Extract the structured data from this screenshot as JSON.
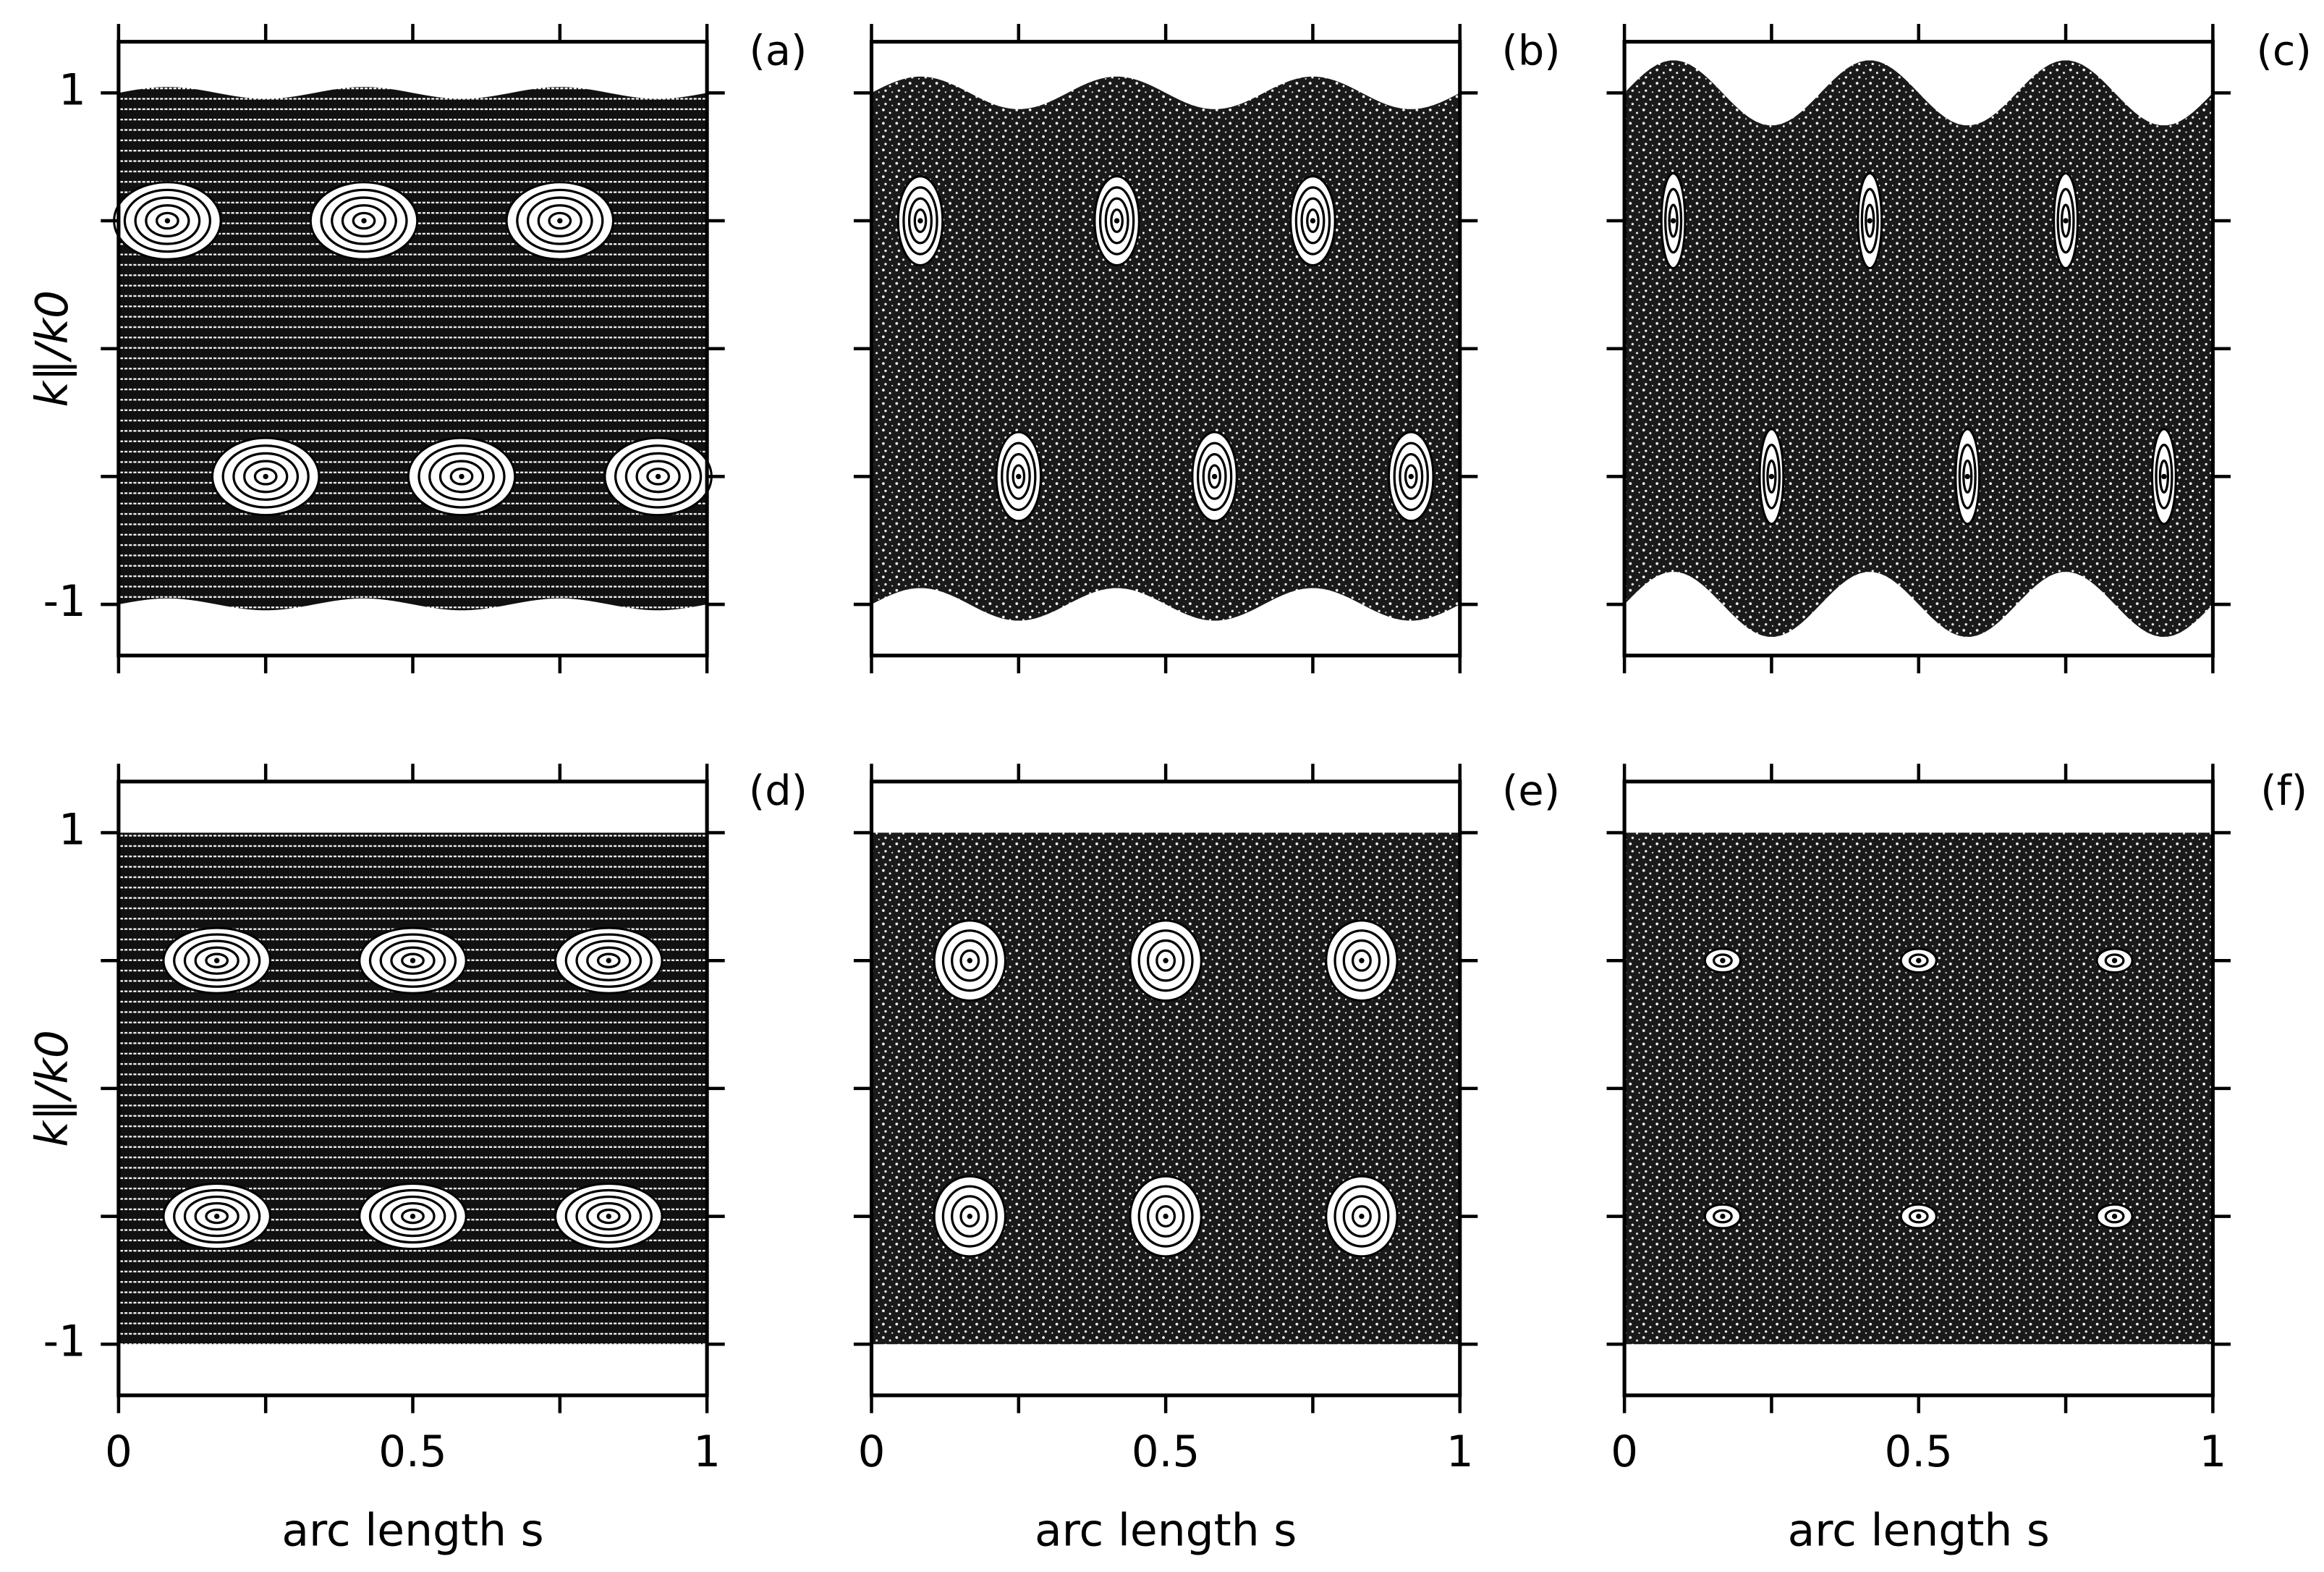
{
  "chart_data": [
    {
      "type": "scatter",
      "label": "(a)",
      "ylabel": "k∥/k0",
      "x": [
        0.083,
        0.417,
        0.75,
        0.25,
        0.583,
        0.917
      ],
      "y": [
        0.5,
        0.5,
        0.5,
        -0.5,
        -0.5,
        -0.5
      ],
      "xlim": [
        0,
        1
      ],
      "ylim": [
        -1.2,
        1.2
      ],
      "xticks": [
        0,
        0.25,
        0.5,
        0.75,
        1
      ],
      "xticklabels": false,
      "yticks": [
        -1,
        {
          "value": -0.5,
          "label": null
        },
        {
          "value": 0,
          "label": null
        },
        {
          "value": 0.5,
          "label": null
        },
        1
      ]
    },
    {
      "type": "scatter",
      "label": "(b)",
      "x": [
        0.083,
        0.417,
        0.75,
        0.25,
        0.583,
        0.917
      ],
      "y": [
        0.5,
        0.5,
        0.5,
        -0.5,
        -0.5,
        -0.5
      ],
      "xlim": [
        0,
        1
      ],
      "ylim": [
        -1.2,
        1.2
      ],
      "xticks": [
        0,
        0.25,
        0.5,
        0.75,
        1
      ],
      "xticklabels": false,
      "yticks": [
        -1,
        -0.5,
        0,
        0.5,
        1
      ],
      "yticklabels": false
    },
    {
      "type": "scatter",
      "label": "(c)",
      "x": [
        0.083,
        0.417,
        0.75,
        0.25,
        0.583,
        0.917
      ],
      "y": [
        0.5,
        0.5,
        0.5,
        -0.5,
        -0.5,
        -0.5
      ],
      "xlim": [
        0,
        1
      ],
      "ylim": [
        -1.2,
        1.2
      ],
      "xticks": [
        0,
        0.25,
        0.5,
        0.75,
        1
      ],
      "xticklabels": false,
      "yticks": [
        -1,
        -0.5,
        0,
        0.5,
        1
      ],
      "yticklabels": false
    },
    {
      "type": "scatter",
      "label": "(d)",
      "ylabel": "k∥/k0",
      "xlabel": "arc length s",
      "x": [
        0.167,
        0.5,
        0.833,
        0.167,
        0.5,
        0.833
      ],
      "y": [
        0.5,
        0.5,
        0.5,
        -0.5,
        -0.5,
        -0.5
      ],
      "xlim": [
        0,
        1
      ],
      "ylim": [
        -1.2,
        1.2
      ],
      "xticks": [
        0,
        {
          "value": 0.25,
          "label": null
        },
        0.5,
        {
          "value": 0.75,
          "label": null
        },
        1
      ],
      "yticks": [
        -1,
        {
          "value": -0.5,
          "label": null
        },
        {
          "value": 0,
          "label": null
        },
        {
          "value": 0.5,
          "label": null
        },
        1
      ]
    },
    {
      "type": "scatter",
      "label": "(e)",
      "xlabel": "arc length s",
      "x": [
        0.167,
        0.5,
        0.833,
        0.167,
        0.5,
        0.833
      ],
      "y": [
        0.5,
        0.5,
        0.5,
        -0.5,
        -0.5,
        -0.5
      ],
      "xlim": [
        0,
        1
      ],
      "ylim": [
        -1.2,
        1.2
      ],
      "xticks": [
        0,
        {
          "value": 0.25,
          "label": null
        },
        0.5,
        {
          "value": 0.75,
          "label": null
        },
        1
      ],
      "yticks": [
        -1,
        -0.5,
        0,
        0.5,
        1
      ],
      "yticklabels": false
    },
    {
      "type": "scatter",
      "label": "(f)",
      "xlabel": "arc length s",
      "x": [
        0.167,
        0.5,
        0.833,
        0.167,
        0.5,
        0.833
      ],
      "y": [
        0.5,
        0.5,
        0.5,
        -0.5,
        -0.5,
        -0.5
      ],
      "xlim": [
        0,
        1
      ],
      "ylim": [
        -1.2,
        1.2
      ],
      "xticks": [
        0,
        {
          "value": 0.25,
          "label": null
        },
        0.5,
        {
          "value": 0.75,
          "label": null
        },
        1
      ],
      "yticks": [
        -1,
        -0.5,
        0,
        0.5,
        1
      ],
      "yticklabels": false
    }
  ]
}
